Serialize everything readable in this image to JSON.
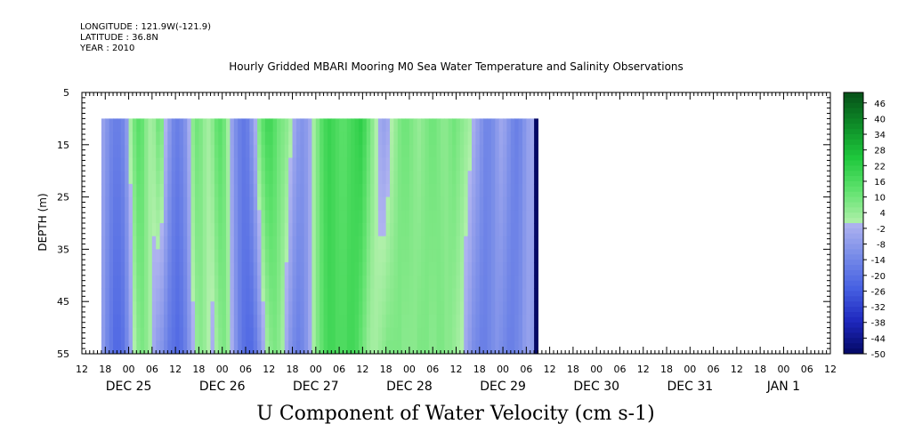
{
  "header": {
    "longitude": "LONGITUDE : 121.9W(-121.9)",
    "latitude": "LATITUDE : 36.8N",
    "year": "YEAR : 2010"
  },
  "chart_data": {
    "type": "heatmap",
    "title": "Hourly Gridded MBARI Mooring M0 Sea Water Temperature and Salinity Observations",
    "xlabel": "U Component of Water Velocity (cm s-1)",
    "ylabel": "DEPTH (m)",
    "y_ticks": [
      5,
      15,
      25,
      35,
      45,
      55
    ],
    "ylim": [
      55,
      5
    ],
    "data_depth_range": [
      10,
      55
    ],
    "hour_ticks": [
      "12",
      "18",
      "00",
      "06",
      "12",
      "18",
      "00",
      "06",
      "12",
      "18",
      "00",
      "06",
      "12",
      "18",
      "00",
      "06",
      "12",
      "18",
      "00",
      "06",
      "12",
      "18",
      "00",
      "06",
      "12",
      "18",
      "00",
      "06",
      "12",
      "18",
      "00",
      "06",
      "12"
    ],
    "date_labels": [
      "DEC 25",
      "DEC 26",
      "DEC 27",
      "DEC 28",
      "DEC 29",
      "DEC 30",
      "DEC 31",
      "JAN  1"
    ],
    "colorbar": {
      "min": -50,
      "max": 50,
      "labels": [
        "46",
        "40",
        "34",
        "28",
        "22",
        "16",
        "10",
        "4",
        "-2",
        "-8",
        "-14",
        "-20",
        "-26",
        "-32",
        "-38",
        "-44",
        "-50"
      ]
    },
    "series": [
      {
        "start_hour_index": 5,
        "values_by_hour_surface": [
          -6,
          -10,
          -14,
          -16,
          -16,
          -14,
          -8,
          2,
          10,
          14,
          12,
          6,
          2,
          4,
          10,
          8,
          0,
          -8,
          -14,
          -16,
          -14,
          -10,
          -2,
          6,
          10,
          8,
          4,
          2,
          6,
          12,
          14,
          10,
          2,
          -6,
          -12,
          -16,
          -18,
          -16,
          -10,
          -2,
          8,
          14,
          18,
          18,
          14,
          10,
          8,
          6,
          2,
          -4,
          -8,
          -10,
          -8,
          -4,
          2,
          8,
          14,
          18,
          20,
          18,
          16,
          14,
          14,
          16,
          18,
          20,
          22,
          18,
          12,
          6,
          0,
          -4,
          -6,
          -4,
          0,
          4,
          8,
          10,
          10,
          8,
          6,
          4,
          6,
          8,
          10,
          10,
          8,
          6,
          6,
          8,
          10,
          8,
          6,
          4,
          2,
          -2,
          -6,
          -10,
          -14,
          -14,
          -12,
          -8,
          -4,
          -6,
          -10,
          -14,
          -16,
          -14,
          -10,
          -6,
          -4,
          -6
        ],
        "values_by_hour_bottom": [
          -8,
          -14,
          -18,
          -22,
          -22,
          -20,
          -14,
          -6,
          0,
          6,
          8,
          6,
          2,
          -4,
          -8,
          -10,
          -14,
          -18,
          -20,
          -22,
          -20,
          -16,
          -10,
          -2,
          4,
          6,
          4,
          0,
          -2,
          2,
          6,
          8,
          4,
          -2,
          -10,
          -16,
          -20,
          -22,
          -22,
          -18,
          -12,
          -4,
          2,
          6,
          8,
          6,
          2,
          -4,
          -10,
          -14,
          -16,
          -14,
          -10,
          -4,
          2,
          8,
          12,
          16,
          18,
          18,
          16,
          16,
          16,
          18,
          18,
          16,
          12,
          8,
          4,
          2,
          2,
          4,
          6,
          8,
          8,
          8,
          8,
          6,
          6,
          6,
          6,
          8,
          8,
          8,
          6,
          6,
          8,
          8,
          6,
          6,
          4,
          2,
          0,
          -4,
          -8,
          -12,
          -14,
          -16,
          -16,
          -14,
          -12,
          -10,
          -12,
          -14,
          -16,
          -16,
          -14,
          -12,
          -8,
          -6,
          -8
        ]
      }
    ]
  }
}
